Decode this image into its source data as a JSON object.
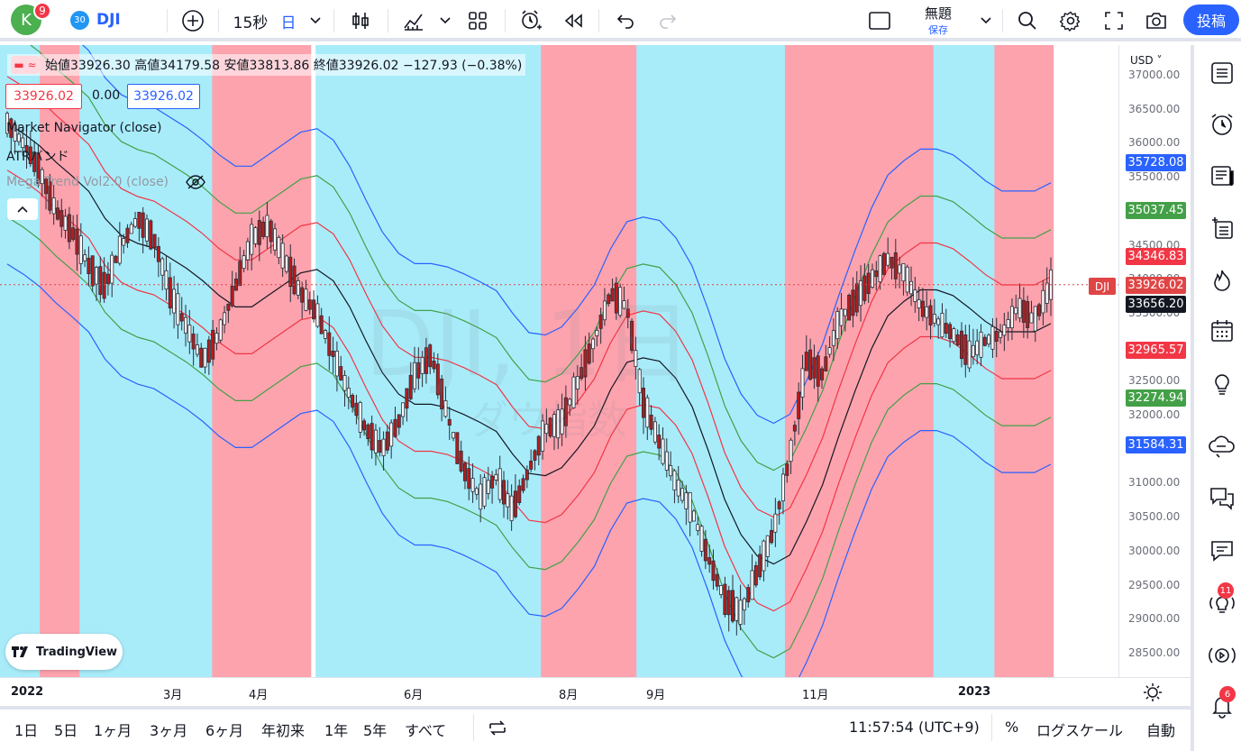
{
  "header": {
    "avatar_letter": "K",
    "avatar_badge": "9",
    "symbol_badge": "30",
    "symbol": "DJI",
    "interval": "15秒",
    "period": "日",
    "layout_title": "無題",
    "layout_sub": "保存",
    "post_label": "投稿"
  },
  "legend": {
    "ohlc": "始値33926.30 高値34179.58 安値33813.86 終値33926.02 −127.93 (−0.38%)",
    "bid": "33926.02",
    "spread": "0.00",
    "ask": "33926.02",
    "indicators": [
      "Market Navigator (close)",
      "ATRバンド",
      "Mega Trend Vol2.0 (close)"
    ]
  },
  "watermark": {
    "symbol": "DJI, 1日",
    "name": "ダウ指数"
  },
  "price_scale": {
    "currency": "USD",
    "ticks": [
      "37000.00",
      "36500.00",
      "36000.00",
      "35500.00",
      "35000.00",
      "34500.00",
      "34000.00",
      "33500.00",
      "33000.00",
      "32500.00",
      "32000.00",
      "31500.00",
      "31000.00",
      "30500.00",
      "30000.00",
      "29500.00",
      "29000.00",
      "28500.00"
    ],
    "labels": [
      {
        "value": "35728.08",
        "color": "#2962ff"
      },
      {
        "value": "35037.45",
        "color": "#43a047"
      },
      {
        "value": "34346.83",
        "color": "#f23645"
      },
      {
        "value": "33926.02",
        "color": "#e04545"
      },
      {
        "value": "33656.20",
        "color": "#131722"
      },
      {
        "value": "32965.57",
        "color": "#f23645"
      },
      {
        "value": "32274.94",
        "color": "#43a047"
      },
      {
        "value": "31584.31",
        "color": "#2962ff"
      }
    ],
    "symbol_tag": "DJI"
  },
  "time_scale": {
    "ticks": [
      {
        "label": "2022",
        "bold": true
      },
      {
        "label": "3月",
        "bold": false
      },
      {
        "label": "4月",
        "bold": false
      },
      {
        "label": "6月",
        "bold": false
      },
      {
        "label": "8月",
        "bold": false
      },
      {
        "label": "9月",
        "bold": false
      },
      {
        "label": "11月",
        "bold": false
      },
      {
        "label": "2023",
        "bold": true
      }
    ]
  },
  "bottom_bar": {
    "ranges": [
      "1日",
      "5日",
      "1ヶ月",
      "3ヶ月",
      "6ヶ月",
      "年初来",
      "1年",
      "5年",
      "すべて"
    ],
    "time": "11:57:54 (UTC+9)",
    "percent": "%",
    "log": "ログスケール",
    "auto": "自動"
  },
  "right_toolbar": {
    "badges": {
      "ideas": "11",
      "notifications": "6"
    }
  },
  "branding": {
    "logo_text": "TradingView"
  },
  "colors": {
    "bull_zone": "#a8ecfa",
    "bear_zone": "#fda3ae",
    "upper_band": "#2962ff",
    "mid_band": "#43a047",
    "inner_band": "#f23645",
    "baseline": "#131722",
    "accent": "#2962ff"
  },
  "chart_data": {
    "type": "candlestick",
    "ylim": [
      28200,
      37100
    ],
    "zones": [
      {
        "start": "2022-01-03",
        "end": "2022-01-17",
        "trend": "bull"
      },
      {
        "start": "2022-01-18",
        "end": "2022-02-01",
        "trend": "bear"
      },
      {
        "start": "2022-02-02",
        "end": "2022-03-23",
        "trend": "bull"
      },
      {
        "start": "2022-03-24",
        "end": "2022-04-29",
        "trend": "bear"
      },
      {
        "start": "2022-05-02",
        "end": "2022-07-25",
        "trend": "bull"
      },
      {
        "start": "2022-07-26",
        "end": "2022-08-30",
        "trend": "bear"
      },
      {
        "start": "2022-08-31",
        "end": "2022-10-25",
        "trend": "bull"
      },
      {
        "start": "2022-10-26",
        "end": "2022-12-20",
        "trend": "bear"
      },
      {
        "start": "2022-12-21",
        "end": "2023-01-12",
        "trend": "bull"
      },
      {
        "start": "2023-01-13",
        "end": "2023-02-03",
        "trend": "bear"
      }
    ],
    "close_path": [
      36300,
      36000,
      35600,
      35000,
      34700,
      34200,
      33900,
      34500,
      34900,
      34600,
      33800,
      33300,
      32800,
      33200,
      33900,
      34600,
      34800,
      34300,
      33800,
      33500,
      32900,
      32300,
      31800,
      31500,
      31900,
      32600,
      32900,
      32000,
      31200,
      30800,
      31100,
      30600,
      31200,
      31800,
      31900,
      32500,
      33100,
      33800,
      33600,
      32200,
      31600,
      31000,
      30600,
      29900,
      29300,
      29100,
      29700,
      30300,
      31400,
      32800,
      32600,
      33400,
      33700,
      34000,
      34300,
      34100,
      33600,
      33400,
      33200,
      32900,
      33100,
      33200,
      33600,
      33400,
      33926
    ]
  }
}
